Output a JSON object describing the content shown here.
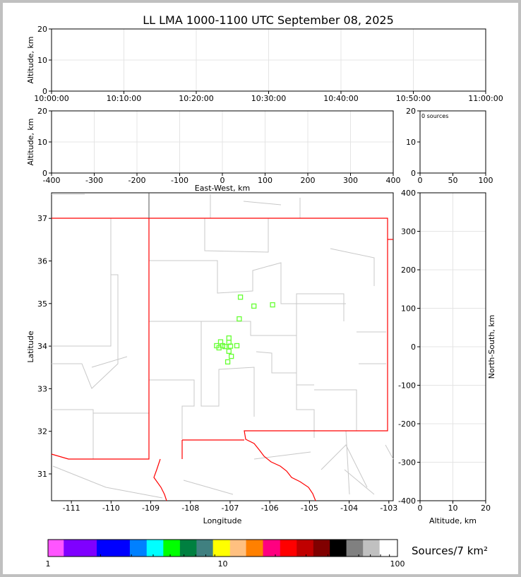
{
  "title": "LL LMA 1000-1100 UTC September 08, 2025",
  "chart_data": [
    {
      "type": "scatter",
      "panel": "altitude-time",
      "ylabel": "Altitude, km",
      "ylim": [
        0,
        20
      ],
      "yticks": [
        "0",
        "10",
        "20"
      ],
      "xlim": [
        "10:00:00",
        "11:00:00"
      ],
      "xticks": [
        "10:00:00",
        "10:10:00",
        "10:20:00",
        "10:30:00",
        "10:40:00",
        "10:50:00",
        "11:00:00"
      ],
      "points": [],
      "grid": true
    },
    {
      "type": "scatter",
      "panel": "altitude-east-west",
      "xlabel": "East-West, km",
      "ylabel": "Altitude, km",
      "xlim": [
        -400,
        400
      ],
      "ylim": [
        0,
        20
      ],
      "xticks": [
        "-400",
        "-300",
        "-200",
        "-100",
        "0",
        "100",
        "200",
        "300",
        "400"
      ],
      "yticks": [
        "0",
        "10",
        "20"
      ],
      "points": [],
      "grid": true
    },
    {
      "type": "histogram",
      "panel": "altitude-histogram",
      "annotation": "0 sources",
      "xlim": [
        0,
        100
      ],
      "ylim": [
        0,
        20
      ],
      "xticks": [
        "0",
        "50",
        "100"
      ],
      "yticks": [
        "0",
        "10",
        "20"
      ]
    },
    {
      "type": "scatter",
      "panel": "plan-view",
      "xlabel": "Longitude",
      "ylabel": "Latitude",
      "xlim": [
        -111.5,
        -102.89
      ],
      "ylim": [
        30.37,
        37.6
      ],
      "xticks": [
        -111,
        -110,
        -109,
        -108,
        -107,
        -106,
        -105,
        -104,
        -103
      ],
      "yticks": [
        31,
        32,
        33,
        34,
        35,
        36,
        37
      ],
      "marker_color": "#66ff33",
      "points": [
        [
          -106.74,
          35.15
        ],
        [
          -106.4,
          34.94
        ],
        [
          -105.93,
          34.97
        ],
        [
          -106.77,
          34.64
        ],
        [
          -107.03,
          34.19
        ],
        [
          -107.24,
          34.1
        ],
        [
          -107.03,
          34.09
        ],
        [
          -107.34,
          34.01
        ],
        [
          -107.19,
          34.01
        ],
        [
          -107.13,
          33.99
        ],
        [
          -106.99,
          34.0
        ],
        [
          -106.83,
          34.01
        ],
        [
          -107.28,
          33.96
        ],
        [
          -107.03,
          33.88
        ],
        [
          -106.97,
          33.76
        ],
        [
          -107.06,
          33.63
        ]
      ]
    },
    {
      "type": "scatter",
      "panel": "altitude-north-south",
      "xlabel": "Altitude, km",
      "ylabel": "North-South, km",
      "xlim": [
        0,
        20
      ],
      "ylim": [
        -400,
        400
      ],
      "xticks": [
        "0",
        "10",
        "20"
      ],
      "yticks": [
        "-400",
        "-300",
        "-200",
        "-100",
        "0",
        "100",
        "200",
        "300",
        "400"
      ],
      "points": [],
      "grid": true
    }
  ],
  "colorbar": {
    "label": "Sources/7 km²",
    "scale": "log",
    "range": [
      1,
      100
    ],
    "ticks": [
      "1",
      "10",
      "100"
    ],
    "bounds": [
      1,
      1.23,
      1.9,
      2.94,
      3.67,
      4.57,
      5.69,
      7.08,
      8.79,
      11,
      13.6,
      17,
      21.3,
      26.5,
      33,
      41,
      51,
      63.5,
      79,
      100
    ],
    "colors": [
      "#ff55ff",
      "#7f00ff",
      "#0000ff",
      "#0080ff",
      "#00ffff",
      "#00ff00",
      "#008040",
      "#408080",
      "#ffff00",
      "#ffc080",
      "#ff8000",
      "#ff0080",
      "#ff0000",
      "#c00000",
      "#800000",
      "#000000",
      "#808080",
      "#c0c0c0",
      "#ffffff"
    ]
  }
}
